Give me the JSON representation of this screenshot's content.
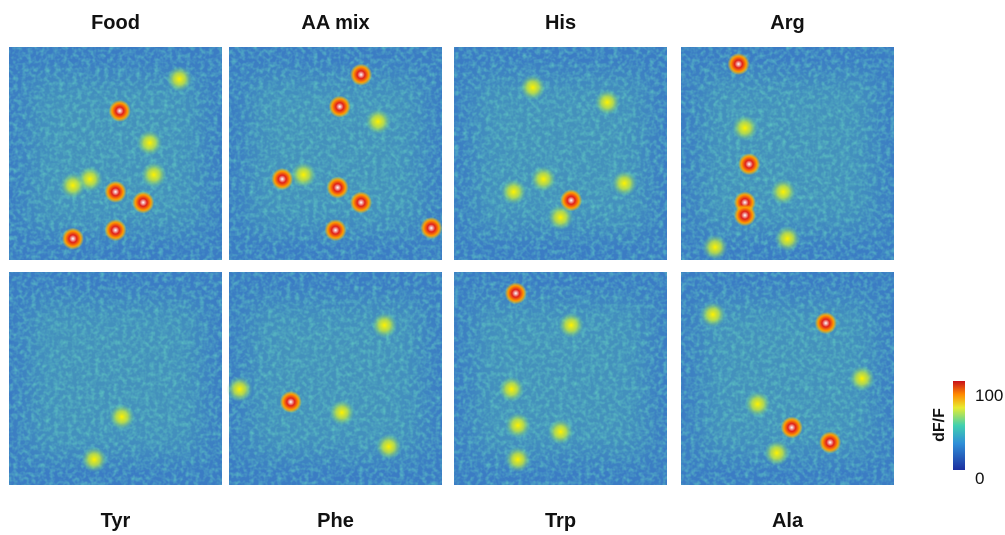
{
  "panels": [
    {
      "title": "Food"
    },
    {
      "title": "AA mix"
    },
    {
      "title": "His"
    },
    {
      "title": "Arg"
    },
    {
      "title": "Tyr"
    },
    {
      "title": "Phe"
    },
    {
      "title": "Trp"
    },
    {
      "title": "Ala"
    }
  ],
  "colorbar": {
    "label": "dF/F",
    "ticks": [
      100,
      0
    ]
  }
}
